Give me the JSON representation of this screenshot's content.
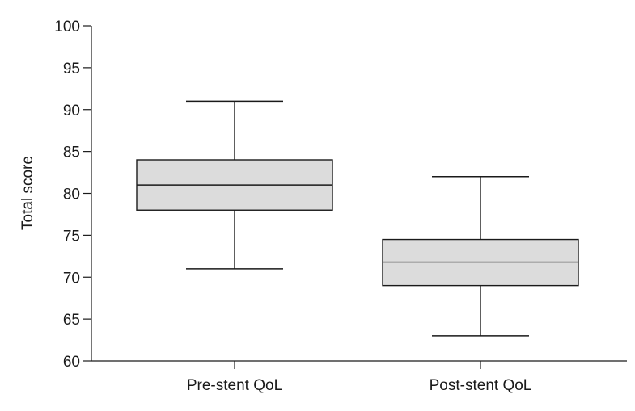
{
  "chart_data": {
    "type": "box",
    "title": "",
    "xlabel": "",
    "ylabel": "Total score",
    "ylim": [
      60,
      100
    ],
    "yticks": [
      60,
      65,
      70,
      75,
      80,
      85,
      90,
      95,
      100
    ],
    "grid": false,
    "categories": [
      "Pre-stent QoL",
      "Post-stent QoL"
    ],
    "boxes": [
      {
        "category": "Pre-stent QoL",
        "min": 71,
        "q1": 78,
        "median": 81,
        "q3": 84,
        "max": 91
      },
      {
        "category": "Post-stent QoL",
        "min": 63,
        "q1": 69,
        "median": 71.8,
        "q3": 74.5,
        "max": 82
      }
    ],
    "colors": {
      "box_fill": "#dcdcdc",
      "stroke": "#1a1a1a"
    }
  }
}
